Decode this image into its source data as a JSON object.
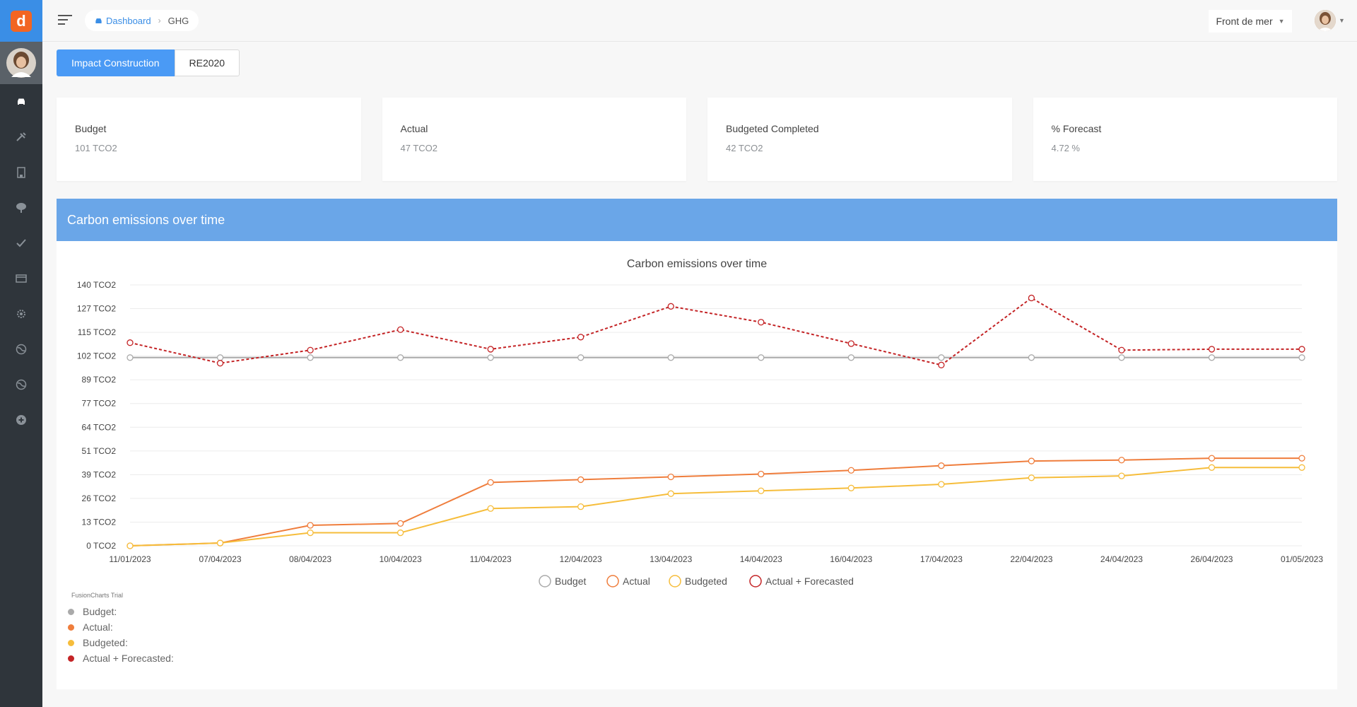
{
  "app": {
    "logo_letter": "d"
  },
  "breadcrumb": {
    "home": "Dashboard",
    "current": "GHG"
  },
  "project_select": {
    "value": "Front de mer"
  },
  "tabs": [
    {
      "label": "Impact Construction"
    },
    {
      "label": "RE2020"
    }
  ],
  "cards": [
    {
      "label": "Budget",
      "value": "101 TCO2"
    },
    {
      "label": "Actual",
      "value": "47 TCO2"
    },
    {
      "label": "Budgeted Completed",
      "value": "42 TCO2"
    },
    {
      "label": "% Forecast",
      "value": "4.72 %"
    }
  ],
  "panel": {
    "title": "Carbon emissions over time"
  },
  "chart_data": {
    "type": "line",
    "title": "Carbon emissions over time",
    "ylim": [
      0,
      140
    ],
    "y_ticks": [
      "140 TCO2",
      "127 TCO2",
      "115 TCO2",
      "102 TCO2",
      "89 TCO2",
      "77 TCO2",
      "64 TCO2",
      "51 TCO2",
      "39 TCO2",
      "26 TCO2",
      "13 TCO2",
      "0 TCO2"
    ],
    "categories": [
      "11/01/2023",
      "07/04/2023",
      "08/04/2023",
      "10/04/2023",
      "11/04/2023",
      "12/04/2023",
      "13/04/2023",
      "14/04/2023",
      "16/04/2023",
      "17/04/2023",
      "22/04/2023",
      "24/04/2023",
      "26/04/2023",
      "01/05/2023"
    ],
    "grid": true,
    "legend_position": "bottom",
    "series": [
      {
        "name": "Budget",
        "color": "#aaaaaa",
        "dashed": false,
        "values": [
          101,
          101,
          101,
          101,
          101,
          101,
          101,
          101,
          101,
          101,
          101,
          101,
          101,
          101
        ]
      },
      {
        "name": "Actual",
        "color": "#ef7d3c",
        "dashed": false,
        "values": [
          0,
          1.5,
          11,
          12,
          34,
          35.5,
          37,
          38.5,
          40.5,
          43,
          45.5,
          46,
          47,
          47
        ]
      },
      {
        "name": "Budgeted",
        "color": "#f6bd3b",
        "dashed": false,
        "values": [
          0,
          1.5,
          7,
          7,
          20,
          21,
          28,
          29.5,
          31,
          33,
          36.5,
          37.5,
          42,
          42
        ]
      },
      {
        "name": "Actual + Forecasted",
        "color": "#c42426",
        "dashed": true,
        "values": [
          109,
          98,
          105,
          116,
          105.5,
          112,
          128.5,
          120,
          108.5,
          97,
          133,
          105,
          105.5,
          105.5
        ]
      }
    ]
  },
  "trial_label": "FusionCharts Trial",
  "tooltip_legend": [
    {
      "label": "Budget:",
      "color": "#aaaaaa"
    },
    {
      "label": "Actual:",
      "color": "#ef7d3c"
    },
    {
      "label": "Budgeted:",
      "color": "#f6bd3b"
    },
    {
      "label": "Actual + Forecasted:",
      "color": "#c42426"
    }
  ]
}
